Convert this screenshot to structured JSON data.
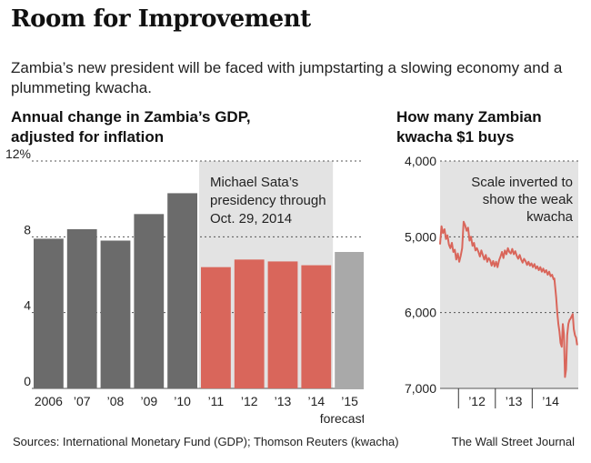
{
  "title": "Room for Improvement",
  "subtitle": "Zambia’s new president will be faced with jumpstarting a slowing economy and a plummeting kwacha.",
  "footer": {
    "sources": "Sources: International Monetary Fund (GDP); Thomson Reuters (kwacha)",
    "credit": "The Wall Street Journal"
  },
  "colors": {
    "historical": "#6b6b6b",
    "sata": "#d9665b",
    "forecast": "#a9a9a9",
    "shade": "#e3e3e3",
    "line": "#d9665b"
  },
  "chart_data": [
    {
      "type": "bar",
      "title": "Annual change in Zambia’s GDP, adjusted for inflation",
      "categories": [
        "2006",
        "’07",
        "’08",
        "’09",
        "’10",
        "’11",
        "’12",
        "’13",
        "’14",
        "’15"
      ],
      "values": [
        7.9,
        8.4,
        7.8,
        9.2,
        10.3,
        6.4,
        6.8,
        6.7,
        6.5,
        7.2
      ],
      "value_groups": [
        "historical",
        "historical",
        "historical",
        "historical",
        "historical",
        "sata",
        "sata",
        "sata",
        "sata",
        "forecast"
      ],
      "forecast_label": "forecast",
      "ylim": [
        0,
        12
      ],
      "yticks": [
        0,
        4,
        8,
        12
      ],
      "ytick_labels": [
        "0",
        "4",
        "8",
        "12%"
      ],
      "annotation": {
        "lines": [
          "Michael Sata’s",
          "presidency through",
          "Oct. 29, 2014"
        ],
        "shaded_from_category": 5,
        "shaded_to_category": 8
      },
      "grid": true
    },
    {
      "type": "line",
      "title": "How many Zambian kwacha $1 buys",
      "inverted_y": true,
      "ylim": [
        4000,
        7000
      ],
      "yticks": [
        4000,
        5000,
        6000,
        7000
      ],
      "ytick_labels": [
        "4,000",
        "5,000",
        "6,000",
        "7,000"
      ],
      "xlim": [
        2011.0,
        2014.75
      ],
      "xticks": [
        2011.5,
        2012.5,
        2013.5
      ],
      "xtick_labels": [
        "’12",
        "’13",
        "’14"
      ],
      "xtick_label_positions": [
        2012.0,
        2013.0,
        2014.0
      ],
      "annotation": {
        "lines": [
          "Scale inverted to",
          "show the weak",
          "kwacha"
        ]
      },
      "grid": true,
      "series": [
        {
          "x": [
            2011.0,
            2011.04,
            2011.08,
            2011.12,
            2011.16,
            2011.2,
            2011.24,
            2011.28,
            2011.32,
            2011.36,
            2011.4,
            2011.44,
            2011.48,
            2011.52,
            2011.56,
            2011.6,
            2011.64,
            2011.68,
            2011.72,
            2011.76,
            2011.8,
            2011.84,
            2011.88,
            2011.92,
            2011.96,
            2012.0,
            2012.04,
            2012.08,
            2012.12,
            2012.16,
            2012.2,
            2012.24,
            2012.28,
            2012.32,
            2012.36,
            2012.4,
            2012.44,
            2012.48,
            2012.52,
            2012.56,
            2012.6,
            2012.64,
            2012.68,
            2012.72,
            2012.76,
            2012.8,
            2012.84,
            2012.88,
            2012.92,
            2012.96,
            2013.0,
            2013.04,
            2013.08,
            2013.12,
            2013.16,
            2013.2,
            2013.24,
            2013.28,
            2013.32,
            2013.36,
            2013.4,
            2013.44,
            2013.48,
            2013.52,
            2013.56,
            2013.6,
            2013.64,
            2013.68,
            2013.72,
            2013.76,
            2013.8,
            2013.84,
            2013.88,
            2013.92,
            2013.96,
            2014.0,
            2014.04,
            2014.08,
            2014.1,
            2014.12,
            2014.15,
            2014.18,
            2014.21,
            2014.24,
            2014.27,
            2014.3,
            2014.33,
            2014.36,
            2014.39,
            2014.42,
            2014.45,
            2014.48,
            2014.51,
            2014.54,
            2014.57,
            2014.6,
            2014.63,
            2014.66,
            2014.69,
            2014.72
          ],
          "values": [
            5100,
            4860,
            4950,
            4900,
            5030,
            4980,
            5100,
            5150,
            5080,
            5200,
            5170,
            5300,
            5220,
            5330,
            5250,
            5150,
            4800,
            4850,
            4920,
            4880,
            5050,
            5000,
            5120,
            5080,
            5180,
            5150,
            5200,
            5260,
            5180,
            5240,
            5300,
            5240,
            5330,
            5280,
            5310,
            5380,
            5320,
            5390,
            5330,
            5400,
            5310,
            5260,
            5200,
            5280,
            5180,
            5230,
            5150,
            5200,
            5220,
            5160,
            5230,
            5190,
            5250,
            5290,
            5240,
            5300,
            5340,
            5290,
            5320,
            5370,
            5330,
            5380,
            5350,
            5400,
            5360,
            5420,
            5390,
            5440,
            5400,
            5460,
            5420,
            5470,
            5440,
            5500,
            5460,
            5520,
            5500,
            5560,
            5550,
            5650,
            5800,
            6000,
            6150,
            6250,
            6400,
            6450,
            6150,
            6280,
            6850,
            6750,
            6300,
            6150,
            6100,
            6080,
            6050,
            6020,
            6220,
            6300,
            6330,
            6430
          ]
        }
      ]
    }
  ]
}
